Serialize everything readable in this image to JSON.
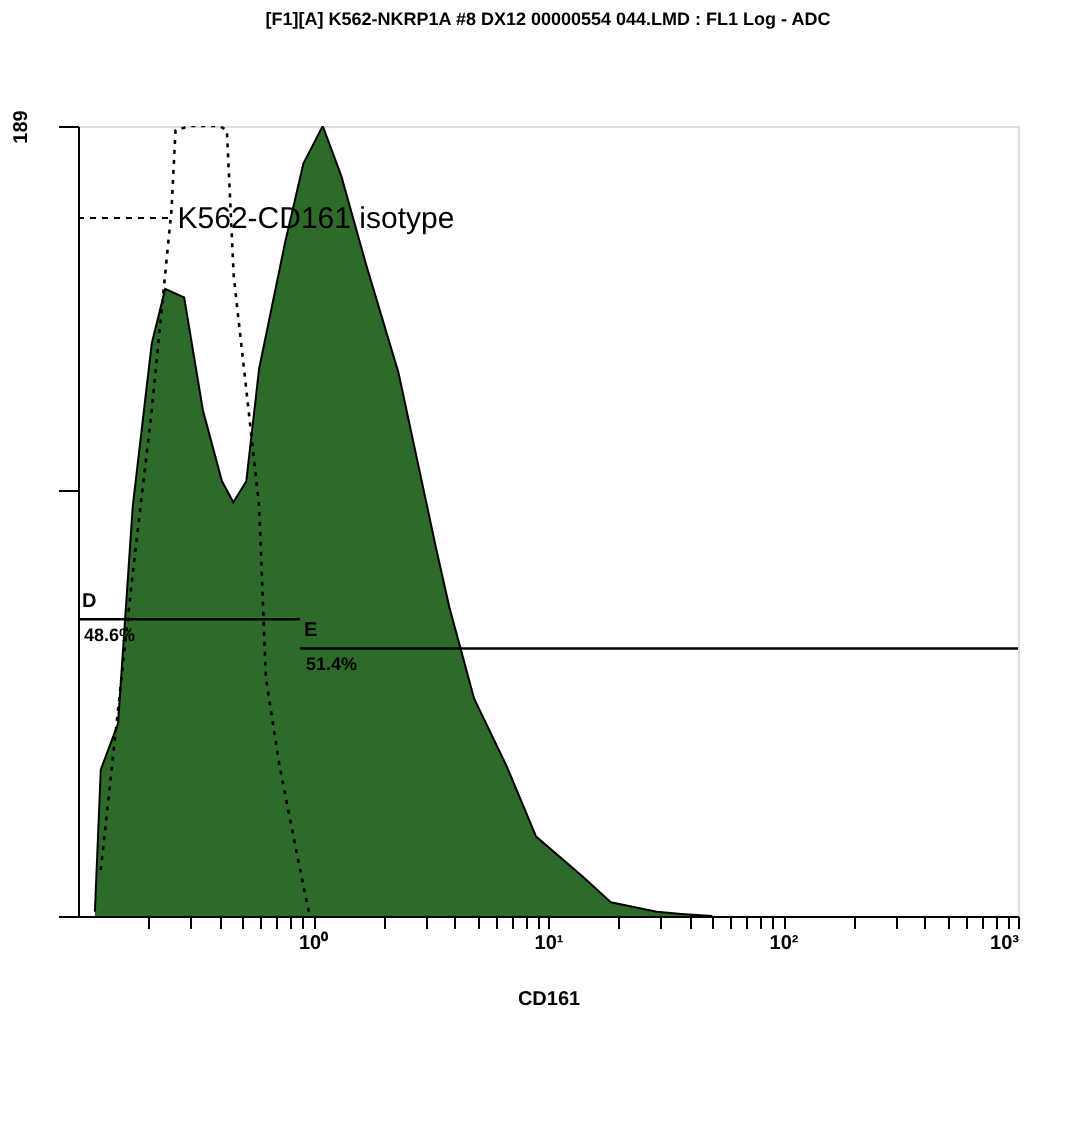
{
  "chart_data": {
    "type": "area",
    "title": "[F1][A] K562-NKRP1A #8 DX12 00000554 044.LMD : FL1 Log - ADC",
    "xlabel": "CD161",
    "log": "x",
    "xlim": [
      0.1,
      1000
    ],
    "ylim": [
      0,
      189
    ],
    "xticks": [
      {
        "value": 0.2,
        "label": null
      },
      {
        "value": 0.3,
        "label": null
      },
      {
        "value": 0.4,
        "label": null
      },
      {
        "value": 0.5,
        "label": null
      },
      {
        "value": 0.6,
        "label": null
      },
      {
        "value": 0.7,
        "label": null
      },
      {
        "value": 0.8,
        "label": null
      },
      {
        "value": 0.9,
        "label": null
      },
      {
        "value": 1,
        "label": "10⁰"
      },
      {
        "value": 2,
        "label": null
      },
      {
        "value": 3,
        "label": null
      },
      {
        "value": 4,
        "label": null
      },
      {
        "value": 5,
        "label": null
      },
      {
        "value": 6,
        "label": null
      },
      {
        "value": 7,
        "label": null
      },
      {
        "value": 8,
        "label": null
      },
      {
        "value": 9,
        "label": null
      },
      {
        "value": 10,
        "label": "10¹"
      },
      {
        "value": 20,
        "label": null
      },
      {
        "value": 30,
        "label": null
      },
      {
        "value": 40,
        "label": null
      },
      {
        "value": 50,
        "label": null
      },
      {
        "value": 60,
        "label": null
      },
      {
        "value": 70,
        "label": null
      },
      {
        "value": 80,
        "label": null
      },
      {
        "value": 90,
        "label": null
      },
      {
        "value": 100,
        "label": "10²"
      },
      {
        "value": 200,
        "label": null
      },
      {
        "value": 300,
        "label": null
      },
      {
        "value": 400,
        "label": null
      },
      {
        "value": 500,
        "label": null
      },
      {
        "value": 600,
        "label": null
      },
      {
        "value": 700,
        "label": null
      },
      {
        "value": 800,
        "label": null
      },
      {
        "value": 900,
        "label": null
      },
      {
        "value": 1000,
        "label": "10³"
      }
    ],
    "yticks": [
      {
        "value": 0,
        "label": null
      },
      {
        "value": 102,
        "label": null
      },
      {
        "value": 189,
        "label": "189"
      }
    ],
    "grid": false,
    "series": [
      {
        "color": "#2e6b2a",
        "x": [
          0.118,
          0.125,
          0.148,
          0.171,
          0.206,
          0.235,
          0.283,
          0.34,
          0.41,
          0.458,
          0.52,
          0.59,
          0.76,
          0.91,
          1.1,
          1.32,
          1.68,
          2.31,
          3.34,
          3.8,
          4.85,
          6.65,
          8.9,
          14,
          18.5,
          29,
          37,
          50
        ],
        "values": [
          1,
          35,
          46,
          98,
          137,
          150,
          148,
          121,
          104,
          99,
          104,
          131,
          161,
          180,
          189,
          177,
          156,
          130,
          88,
          74,
          52,
          36,
          19,
          9.5,
          3.3,
          1,
          0.5,
          0
        ]
      },
      {
        "type": "line",
        "line_style": "dotted",
        "color": "#000000",
        "x": [
          0.125,
          0.171,
          0.206,
          0.25,
          0.26,
          0.3,
          0.4,
          0.43,
          0.46,
          0.52,
          0.59,
          0.63,
          0.72,
          0.86,
          0.96
        ],
        "values": [
          11,
          82,
          121,
          169,
          188,
          189,
          189,
          188,
          153,
          126,
          98,
          57,
          36,
          14,
          1
        ]
      },
      {
        "type": "line",
        "line_style": "solid",
        "name": "D",
        "color": "#000000",
        "x": [
          0.1,
          0.88
        ],
        "values": [
          71,
          71
        ]
      },
      {
        "type": "line",
        "line_style": "solid",
        "name": "E",
        "color": "#000000",
        "x": [
          0.88,
          1000
        ],
        "values": [
          64,
          64
        ]
      }
    ],
    "annotations": [
      {
        "text": "K562-CD161 isotype",
        "x": 0.25,
        "y": 167
      },
      {
        "text": "48.6%",
        "x": 0.1,
        "y": 71
      },
      {
        "text": "51.4%",
        "x": 0.88,
        "y": 64
      }
    ]
  }
}
